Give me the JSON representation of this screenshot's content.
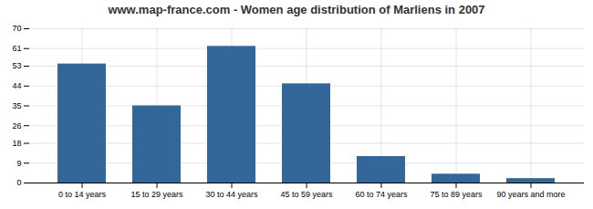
{
  "chart_data": {
    "type": "bar",
    "title": "www.map-france.com - Women age distribution of Marliens in 2007",
    "categories": [
      "0 to 14 years",
      "15 to 29 years",
      "30 to 44 years",
      "45 to 59 years",
      "60 to 74 years",
      "75 to 89 years",
      "90 years and more"
    ],
    "values": [
      54,
      35,
      62,
      45,
      12,
      4,
      2
    ],
    "color": "#336699",
    "ylim": [
      0,
      70
    ],
    "yticks": [
      0,
      9,
      18,
      26,
      35,
      44,
      53,
      61,
      70
    ],
    "grid": true
  }
}
